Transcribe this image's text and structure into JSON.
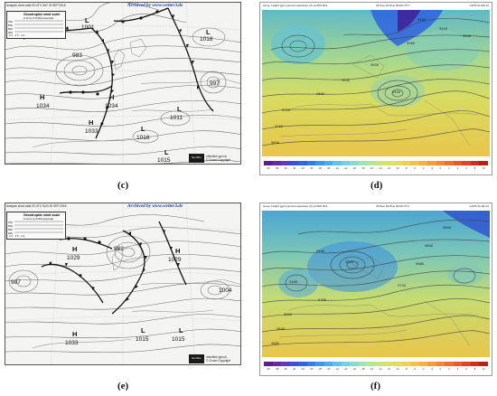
{
  "chart_panels": [
    {
      "header": "Analysis chart  valid 00 UTC SAT 29 SEP 2018",
      "archived": "Archived by www.wetter3.de",
      "scale_title": "Geostrophic wind scale",
      "scale_sub": "in kt for 4.0 hPa intervals",
      "scale_lats": [
        "70N",
        "60N",
        "50N",
        "40N"
      ],
      "scale_ticks": "40  25   10",
      "logo_text": "Met Office",
      "credit1": "metoffice.gov.uk",
      "credit2": "© Crown Copyright",
      "centres": [
        {
          "type": "L",
          "value": "1001"
        },
        {
          "type": "",
          "value": "983"
        },
        {
          "type": "L",
          "value": "1018"
        },
        {
          "type": "",
          "value": "997"
        },
        {
          "type": "H",
          "value": "1034"
        },
        {
          "type": "H",
          "value": "1034"
        },
        {
          "type": "H",
          "value": "1033"
        },
        {
          "type": "L",
          "value": "1011"
        },
        {
          "type": "L",
          "value": "1016"
        },
        {
          "type": "L",
          "value": "1015"
        }
      ],
      "label": "(c)"
    },
    {
      "header": "Analysis chart  valid 00 UTC SUN 30 SEP 2018",
      "archived": "Archived by www.wetter3.de",
      "scale_title": "Geostrophic wind scale",
      "scale_sub": "in kt for 4.0 hPa intervals",
      "scale_lats": [
        "70N",
        "60N",
        "50N",
        "40N"
      ],
      "scale_ticks": "40  25   10",
      "logo_text": "Met Office",
      "credit1": "metoffice.gov.uk",
      "credit2": "© Crown Copyright",
      "centres": [
        {
          "type": "H",
          "value": "1029"
        },
        {
          "type": "",
          "value": "982"
        },
        {
          "type": "H",
          "value": "1029"
        },
        {
          "type": "",
          "value": "987"
        },
        {
          "type": "",
          "value": "1004"
        },
        {
          "type": "H",
          "value": "1033"
        },
        {
          "type": "L",
          "value": "1015"
        },
        {
          "type": "L",
          "value": "1015"
        }
      ],
      "label": "(e)"
    }
  ],
  "model_panels": [
    {
      "title": "Geop. height (gpm) and temperature (C) at 500 hPa",
      "date": "29 Sep 2018 at 00:00 UTC",
      "code": "LAPS (0-48) 12",
      "contours": [
        "5800",
        "5760",
        "5720",
        "5680",
        "5640",
        "5600",
        "5560",
        "5520",
        "5480",
        "5440",
        "5400"
      ],
      "label": "(d)"
    },
    {
      "title": "Geop. height (gpm) and temperature (C) at 500 hPa",
      "date": "30 Sep 2018 at 00:00 UTC",
      "code": "LAPS (0-48) 12",
      "contours": [
        "5880",
        "5840",
        "5800",
        "5760",
        "5720",
        "5680",
        "5640",
        "5600",
        "5560",
        "5520",
        "5480"
      ],
      "label": "(f)"
    }
  ],
  "colorbar": {
    "ticks": [
      "-40",
      "-38",
      "-36",
      "-34",
      "-32",
      "-30",
      "-28",
      "-26",
      "-24",
      "-22",
      "-20",
      "-18",
      "-16",
      "-14",
      "-12",
      "-10",
      "-8",
      "-6",
      "-4",
      "-2",
      "0",
      "2",
      "4",
      "6",
      "8",
      "10"
    ],
    "colors": [
      "#5a1f8a",
      "#6c2aa0",
      "#5a3cc0",
      "#3f4fd6",
      "#2f63e0",
      "#2f7fe6",
      "#3a97ec",
      "#48aef0",
      "#5ec3ec",
      "#72d2e0",
      "#86dccc",
      "#9ee3b0",
      "#b6e690",
      "#c9e67a",
      "#d8e36a",
      "#e6dc5c",
      "#efd04f",
      "#f4c146",
      "#f6b03f",
      "#f59c39",
      "#f28734",
      "#ee702e",
      "#e85a29",
      "#dd4423",
      "#cc311d",
      "#b52217"
    ]
  }
}
